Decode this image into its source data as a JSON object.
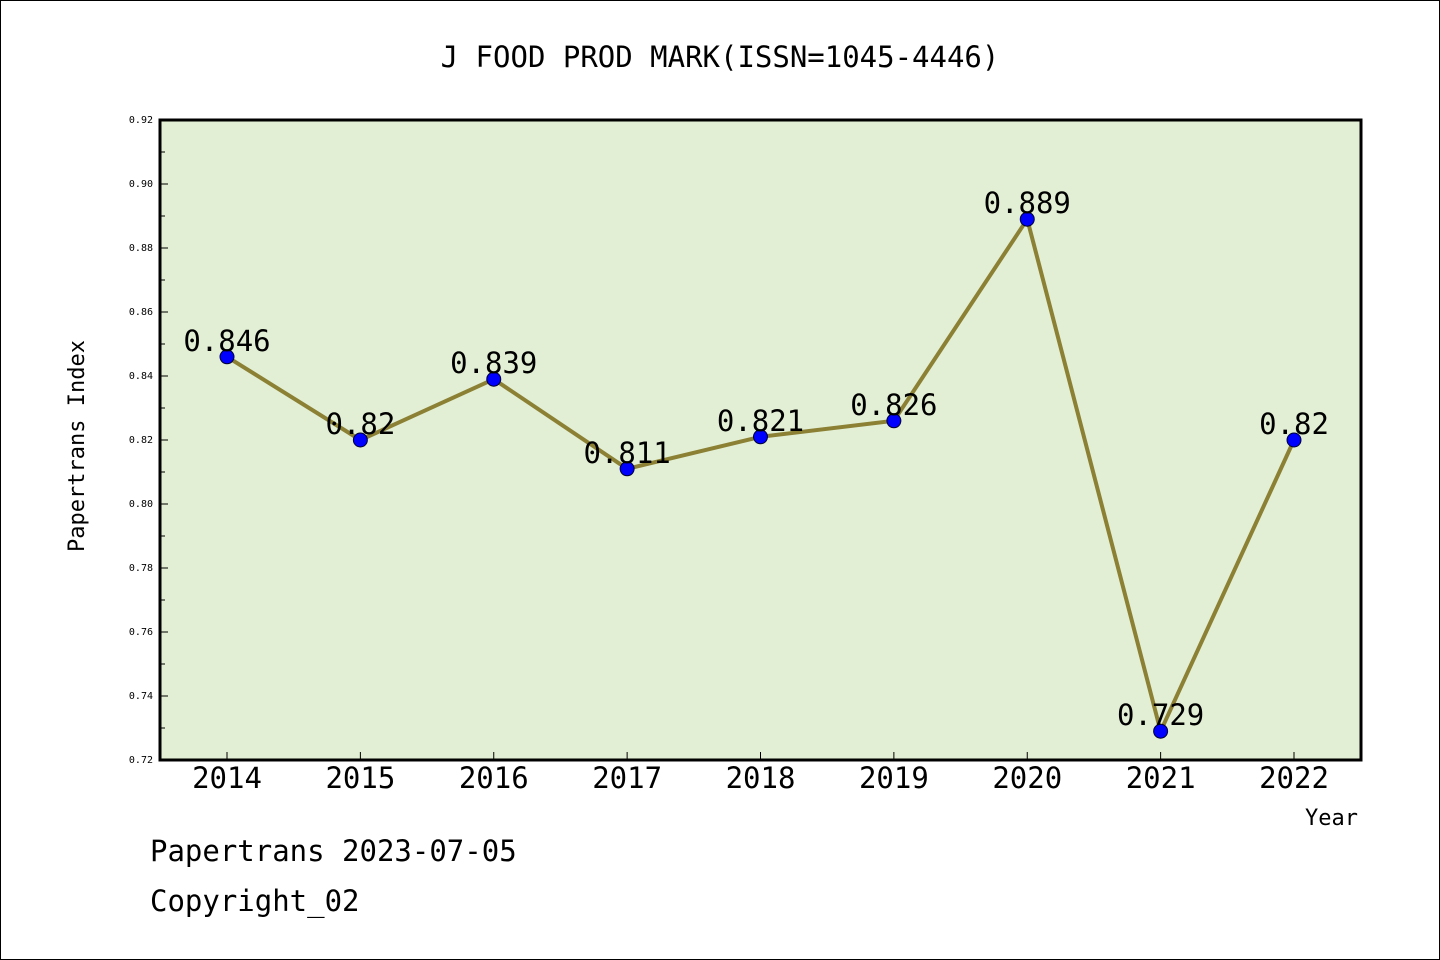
{
  "chart_data": {
    "type": "line",
    "title": "J FOOD PROD MARK(ISSN=1045-4446)",
    "xlabel": "Year",
    "ylabel": "Papertrans Index",
    "categories": [
      "2014",
      "2015",
      "2016",
      "2017",
      "2018",
      "2019",
      "2020",
      "2021",
      "2022"
    ],
    "series": [
      {
        "values": [
          0.846,
          0.82,
          0.839,
          0.811,
          0.821,
          0.826,
          0.889,
          0.729,
          0.82
        ]
      }
    ],
    "data_labels": [
      "0.846",
      "0.82",
      "0.839",
      "0.811",
      "0.821",
      "0.826",
      "0.889",
      "0.729",
      "0.82"
    ],
    "ylim": [
      0.72,
      0.92
    ],
    "yticks": [
      "0.72",
      "0.74",
      "0.76",
      "0.78",
      "0.80",
      "0.82",
      "0.84",
      "0.86",
      "0.88",
      "0.90",
      "0.92"
    ],
    "grid": false,
    "colors": {
      "plot_background": "#e2efd4",
      "line": "#8b8034",
      "marker": "#0000ff"
    }
  },
  "footer": {
    "line1": "Papertrans 2023-07-05",
    "line2": "Copyright_02"
  }
}
